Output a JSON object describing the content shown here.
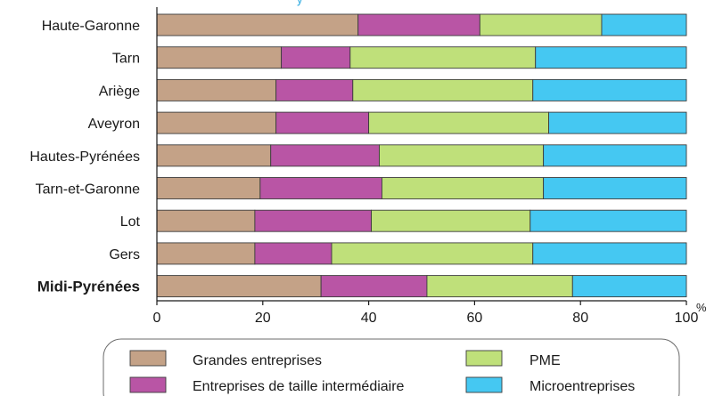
{
  "chart_data": {
    "type": "bar",
    "orientation": "horizontal",
    "stacked": true,
    "categories": [
      "Haute-Garonne",
      "Tarn",
      "Ariège",
      "Aveyron",
      "Hautes-Pyrénées",
      "Tarn-et-Garonne",
      "Lot",
      "Gers",
      "Midi-Pyrénées"
    ],
    "bold_categories": [
      "Midi-Pyrénées"
    ],
    "series": [
      {
        "name": "Grandes entreprises",
        "color": "#c4a287",
        "values": [
          38,
          23.5,
          22.5,
          22.5,
          21.5,
          19.5,
          18.5,
          18.5,
          31
        ]
      },
      {
        "name": "Entreprises de taille intermédiaire",
        "color": "#b955a5",
        "values": [
          23,
          13,
          14.5,
          17.5,
          20.5,
          23,
          22,
          14.5,
          20
        ]
      },
      {
        "name": "PME",
        "color": "#bfe07a",
        "values": [
          23,
          35,
          34,
          34,
          31,
          30.5,
          30,
          38,
          27.5
        ]
      },
      {
        "name": "Microentreprises",
        "color": "#45c8f2",
        "values": [
          16,
          28.5,
          29,
          26,
          27,
          27,
          29.5,
          29,
          21.5
        ]
      }
    ],
    "xlim": [
      0,
      100
    ],
    "x_ticks": [
      "0",
      "20",
      "40",
      "60",
      "80",
      "100"
    ],
    "x_unit": "%",
    "grid": false,
    "legend_position": "bottom",
    "legend_order": [
      "Grandes entreprises",
      "PME",
      "Entreprises de taille intermédiaire",
      "Microentreprises"
    ]
  }
}
